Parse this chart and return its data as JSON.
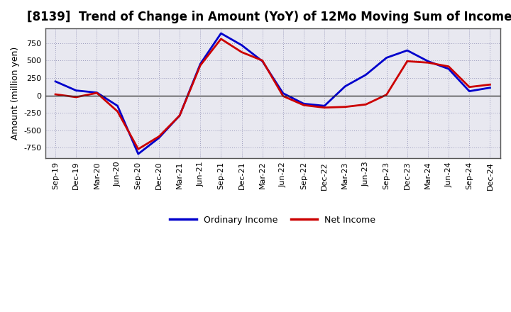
{
  "title": "[8139]  Trend of Change in Amount (YoY) of 12Mo Moving Sum of Incomes",
  "ylabel": "Amount (million yen)",
  "background_color": "#ffffff",
  "plot_bg_color": "#e8e8f0",
  "grid_color": "#9999bb",
  "x_labels": [
    "Sep-19",
    "Dec-19",
    "Mar-20",
    "Jun-20",
    "Sep-20",
    "Dec-20",
    "Mar-21",
    "Jun-21",
    "Sep-21",
    "Dec-21",
    "Mar-22",
    "Jun-22",
    "Sep-22",
    "Dec-22",
    "Mar-23",
    "Jun-23",
    "Sep-23",
    "Dec-23",
    "Mar-24",
    "Jun-24",
    "Sep-24",
    "Dec-24"
  ],
  "ordinary_income": [
    200,
    70,
    40,
    -150,
    -840,
    -610,
    -290,
    450,
    890,
    720,
    490,
    30,
    -120,
    -150,
    130,
    295,
    540,
    645,
    490,
    380,
    60,
    110
  ],
  "net_income": [
    15,
    -25,
    35,
    -230,
    -770,
    -590,
    -290,
    430,
    810,
    620,
    500,
    -10,
    -140,
    -175,
    -165,
    -130,
    10,
    490,
    470,
    415,
    120,
    155
  ],
  "ylim": [
    -900,
    960
  ],
  "yticks": [
    -750,
    -500,
    -250,
    0,
    250,
    500,
    750
  ],
  "line_color_ordinary": "#0000cc",
  "line_color_net": "#cc0000",
  "line_width": 2.0,
  "title_fontsize": 12,
  "tick_fontsize": 8,
  "legend_labels": [
    "Ordinary Income",
    "Net Income"
  ]
}
